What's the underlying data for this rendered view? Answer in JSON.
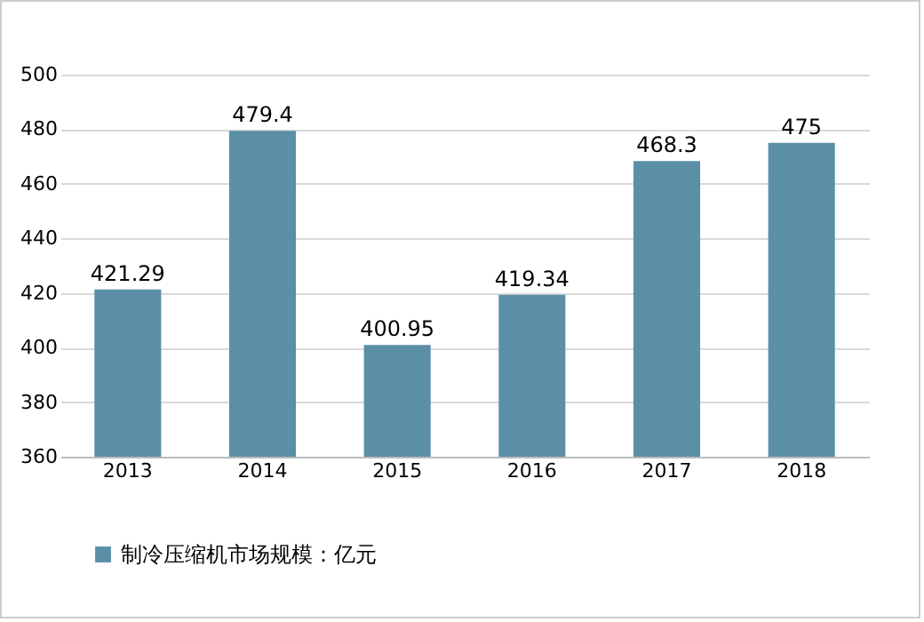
{
  "chart_data": {
    "type": "bar",
    "categories": [
      "2013",
      "2014",
      "2015",
      "2016",
      "2017",
      "2018"
    ],
    "series": [
      {
        "name": "制冷压缩机市场规模：亿元",
        "color": "#5b8fa8",
        "values": [
          421.29,
          479.4,
          400.95,
          419.34,
          468.3,
          475
        ]
      }
    ],
    "ylim": [
      360,
      500
    ],
    "yticks": [
      360,
      380,
      400,
      420,
      440,
      460,
      480,
      500
    ],
    "grid": "y",
    "legend": "bottom",
    "data_labels": true
  }
}
